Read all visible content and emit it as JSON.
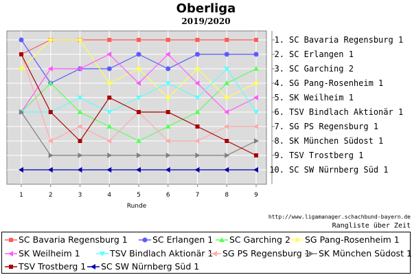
{
  "header": {
    "title": "Oberliga",
    "subtitle": "2019/2020"
  },
  "footer": {
    "source": "http://www.ligamanager.schachbund-bayern.de",
    "caption": "Rangliste über Zeit"
  },
  "chart_data": {
    "type": "line",
    "xlabel": "Runde",
    "ylabel": "",
    "x": [
      1,
      2,
      3,
      4,
      5,
      6,
      7,
      8,
      9
    ],
    "ylim": [
      0.5,
      10.5
    ],
    "y_inverted": true,
    "grid": true,
    "legend_position": "bottom",
    "rank_labels": [
      "1. SC Bavaria Regensburg 1",
      "2. SC Erlangen 1",
      "3. SC Garching 2",
      "4. SG Pang-Rosenheim 1",
      "5. SK Weilheim 1",
      "6. TSV Bindlach Aktionär 1",
      "7. SG PS Regensburg 1",
      "8. SK München Südost 1",
      "9. TSV Trostberg 1",
      "10. SC SW Nürnberg Süd 1"
    ],
    "series": [
      {
        "name": "SC Bavaria Regensburg 1",
        "color": "#ff5a5a",
        "marker": "square",
        "values": [
          2,
          1,
          1,
          1,
          1,
          1,
          1,
          1,
          1
        ]
      },
      {
        "name": "SC Erlangen 1",
        "color": "#5a5aff",
        "marker": "circle",
        "values": [
          1,
          4,
          3,
          3,
          2,
          3,
          2,
          2,
          2
        ]
      },
      {
        "name": "SC Garching 2",
        "color": "#5aff5a",
        "marker": "triangle-up",
        "values": [
          6,
          4,
          6,
          7,
          8,
          7,
          6,
          4,
          3
        ]
      },
      {
        "name": "SG Pang-Rosenheim 1",
        "color": "#ffff5a",
        "marker": "diamond",
        "values": [
          3,
          1,
          1,
          4,
          3,
          5,
          3,
          5,
          4
        ]
      },
      {
        "name": "SK Weilheim 1",
        "color": "#ff5aff",
        "marker": "triangle-left",
        "values": [
          6,
          3,
          3,
          2,
          4,
          2,
          4,
          6,
          5
        ]
      },
      {
        "name": "TSV Bindlach Aktionär 1",
        "color": "#5affff",
        "marker": "triangle-down",
        "values": [
          6,
          6,
          5,
          6,
          5,
          4,
          5,
          3,
          6
        ]
      },
      {
        "name": "SG PS Regensburg 1",
        "color": "#ffaaaa",
        "marker": "triangle-left",
        "values": [
          2,
          8,
          7,
          8,
          6,
          8,
          8,
          7,
          7
        ]
      },
      {
        "name": "SK München Südost 1",
        "color": "#808080",
        "marker": "triangle-right",
        "values": [
          6,
          9,
          9,
          9,
          9,
          9,
          9,
          9,
          8
        ]
      },
      {
        "name": "TSV Trostberg 1",
        "color": "#aa0000",
        "marker": "square",
        "values": [
          2,
          6,
          8,
          5,
          6,
          6,
          7,
          8,
          9
        ]
      },
      {
        "name": "SC SW Nürnberg Süd 1",
        "color": "#0000aa",
        "marker": "triangle-left",
        "values": [
          10,
          10,
          10,
          10,
          10,
          10,
          10,
          10,
          10
        ]
      }
    ]
  }
}
